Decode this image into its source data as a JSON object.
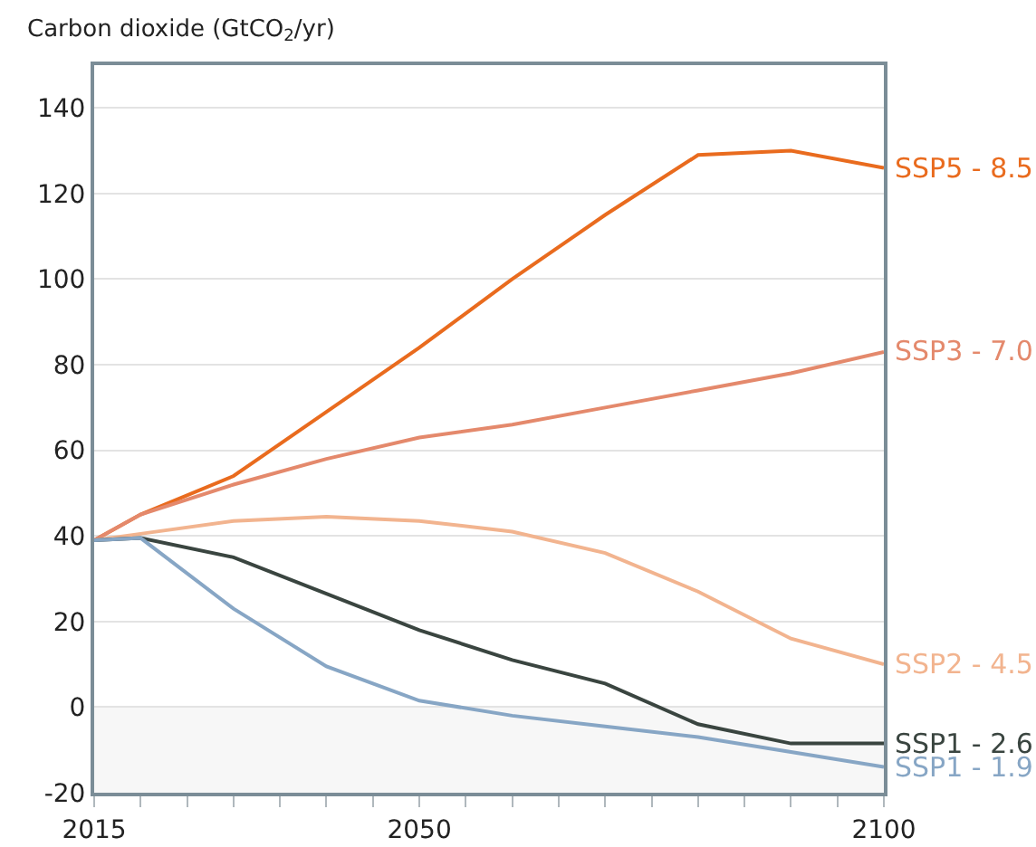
{
  "chart_data": {
    "type": "line",
    "ylabel": "Carbon dioxide (GtCO$_{2}$/yr)",
    "x": [
      2015,
      2020,
      2030,
      2040,
      2050,
      2060,
      2070,
      2080,
      2090,
      2100
    ],
    "series": [
      {
        "name": "SSP5 - 8.5",
        "color": "#e96b1e",
        "values": [
          39,
          45,
          54,
          69,
          84,
          100,
          115,
          129,
          130,
          126
        ]
      },
      {
        "name": "SSP3 - 7.0",
        "color": "#e4896c",
        "values": [
          39,
          45,
          52,
          58,
          63,
          66,
          70,
          74,
          78,
          83
        ]
      },
      {
        "name": "SSP2 - 4.5",
        "color": "#f2b48f",
        "values": [
          39,
          40.5,
          43.5,
          44.5,
          43.5,
          41,
          36,
          27,
          16,
          10
        ]
      },
      {
        "name": "SSP1 - 2.6",
        "color": "#3a4540",
        "values": [
          39,
          39.5,
          35,
          26.5,
          18,
          11,
          5.5,
          -4,
          -8.5,
          -8.5
        ]
      },
      {
        "name": "SSP1 - 1.9",
        "color": "#87a6c5",
        "values": [
          39,
          39.5,
          23,
          9.5,
          1.5,
          -2,
          -4.5,
          -7,
          -10.5,
          -14
        ]
      }
    ],
    "xlim": [
      2015,
      2100
    ],
    "xticks": [
      2015,
      {
        "value": 2020,
        "label": null
      },
      {
        "value": 2025,
        "label": null
      },
      {
        "value": 2030,
        "label": null
      },
      {
        "value": 2035,
        "label": null
      },
      {
        "value": 2040,
        "label": null
      },
      {
        "value": 2045,
        "label": null
      },
      2050,
      {
        "value": 2055,
        "label": null
      },
      {
        "value": 2060,
        "label": null
      },
      {
        "value": 2065,
        "label": null
      },
      {
        "value": 2070,
        "label": null
      },
      {
        "value": 2075,
        "label": null
      },
      {
        "value": 2080,
        "label": null
      },
      {
        "value": 2085,
        "label": null
      },
      {
        "value": 2090,
        "label": null
      },
      {
        "value": 2095,
        "label": null
      },
      2100
    ],
    "ylim": [
      -20,
      150
    ],
    "yticks": [
      -20,
      0,
      20,
      40,
      60,
      80,
      100,
      120,
      140
    ],
    "bands": [
      {
        "axis": "y",
        "from": -20,
        "to": 0,
        "color": "#f7f7f7"
      }
    ],
    "grid": "y",
    "legend": false,
    "marker": "none",
    "line_style": "solid"
  }
}
